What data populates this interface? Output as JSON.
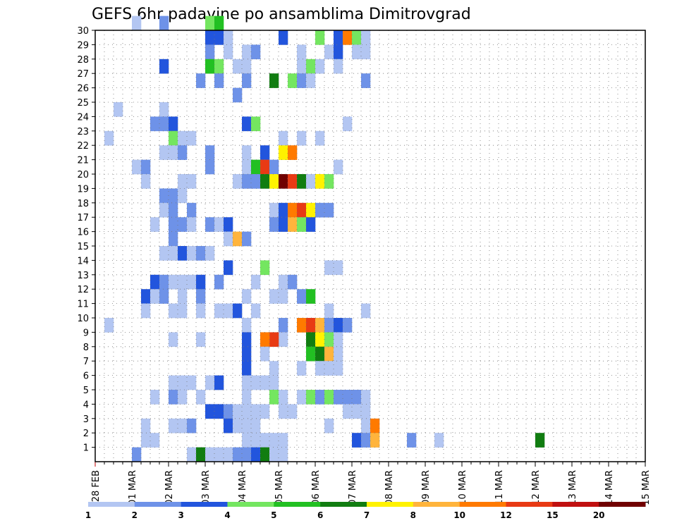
{
  "chart_data": {
    "type": "heatmap",
    "title": "GEFS 6hr padavine po ansamblima Dimitrovgrad",
    "xlabel": "",
    "ylabel": "",
    "x_tick_labels": [
      "28 FEB",
      "01 MAR",
      "02 MAR",
      "03 MAR",
      "04 MAR",
      "05 MAR",
      "06 MAR",
      "07 MAR",
      "08 MAR",
      "09 MAR",
      "10 MAR",
      "11 MAR",
      "12 MAR",
      "13 MAR",
      "14 MAR",
      "15 MAR"
    ],
    "xlim_days": [
      0,
      15
    ],
    "steps_per_day": 4,
    "y_tick_labels": [
      "1",
      "2",
      "3",
      "4",
      "5",
      "6",
      "7",
      "8",
      "9",
      "10",
      "11",
      "12",
      "13",
      "14",
      "15",
      "16",
      "17",
      "18",
      "19",
      "20",
      "21",
      "22",
      "23",
      "24",
      "25",
      "26",
      "27",
      "28",
      "29",
      "30"
    ],
    "ylim_members": [
      0,
      30
    ],
    "grid": true,
    "colorbar": {
      "placement": "bottom",
      "levels": [
        "1",
        "2",
        "3",
        "4",
        "5",
        "6",
        "7",
        "8",
        "10",
        "12",
        "15",
        "20"
      ],
      "colors": [
        "#b3c6f2",
        "#6e92e8",
        "#2255dd",
        "#74e660",
        "#22c022",
        "#117d11",
        "#fff200",
        "#ffb43c",
        "#ff7a00",
        "#e83a14",
        "#c01010",
        "#700000"
      ]
    },
    "precip_cells": [
      [
        30,
        4,
        0
      ],
      [
        30,
        7,
        1
      ],
      [
        30,
        12,
        3
      ],
      [
        30,
        13,
        4
      ],
      [
        29,
        12,
        2
      ],
      [
        29,
        13,
        2
      ],
      [
        29,
        14,
        0
      ],
      [
        29,
        20,
        2
      ],
      [
        29,
        24,
        3
      ],
      [
        29,
        26,
        2
      ],
      [
        29,
        27,
        8
      ],
      [
        29,
        28,
        3
      ],
      [
        29,
        29,
        0
      ],
      [
        28,
        14,
        0
      ],
      [
        28,
        16,
        0
      ],
      [
        28,
        17,
        1
      ],
      [
        28,
        12,
        1
      ],
      [
        28,
        22,
        0
      ],
      [
        28,
        25,
        0
      ],
      [
        28,
        26,
        2
      ],
      [
        28,
        28,
        0
      ],
      [
        28,
        29,
        0
      ],
      [
        27,
        7,
        2
      ],
      [
        27,
        12,
        4
      ],
      [
        27,
        13,
        3
      ],
      [
        27,
        15,
        0
      ],
      [
        27,
        16,
        0
      ],
      [
        27,
        22,
        0
      ],
      [
        27,
        23,
        3
      ],
      [
        27,
        24,
        0
      ],
      [
        27,
        26,
        0
      ],
      [
        26,
        11,
        1
      ],
      [
        26,
        13,
        1
      ],
      [
        26,
        16,
        1
      ],
      [
        26,
        19,
        5
      ],
      [
        26,
        21,
        3
      ],
      [
        26,
        22,
        1
      ],
      [
        26,
        23,
        0
      ],
      [
        26,
        29,
        1
      ],
      [
        25,
        15,
        1
      ],
      [
        24,
        2,
        0
      ],
      [
        24,
        7,
        0
      ],
      [
        23,
        6,
        1
      ],
      [
        23,
        7,
        1
      ],
      [
        23,
        8,
        2
      ],
      [
        23,
        16,
        2
      ],
      [
        23,
        17,
        3
      ],
      [
        23,
        27,
        0
      ],
      [
        22,
        1,
        0
      ],
      [
        22,
        8,
        3
      ],
      [
        22,
        9,
        0
      ],
      [
        22,
        10,
        0
      ],
      [
        22,
        20,
        0
      ],
      [
        22,
        22,
        0
      ],
      [
        22,
        24,
        0
      ],
      [
        21,
        7,
        0
      ],
      [
        21,
        8,
        0
      ],
      [
        21,
        9,
        1
      ],
      [
        21,
        12,
        1
      ],
      [
        21,
        16,
        0
      ],
      [
        21,
        18,
        2
      ],
      [
        21,
        20,
        6
      ],
      [
        21,
        21,
        8
      ],
      [
        20,
        4,
        0
      ],
      [
        20,
        5,
        1
      ],
      [
        20,
        12,
        1
      ],
      [
        20,
        16,
        0
      ],
      [
        20,
        17,
        4
      ],
      [
        20,
        18,
        9
      ],
      [
        20,
        19,
        1
      ],
      [
        20,
        26,
        0
      ],
      [
        19,
        5,
        0
      ],
      [
        19,
        9,
        0
      ],
      [
        19,
        10,
        0
      ],
      [
        19,
        15,
        0
      ],
      [
        19,
        16,
        1
      ],
      [
        19,
        17,
        1
      ],
      [
        19,
        18,
        5
      ],
      [
        19,
        19,
        6
      ],
      [
        19,
        20,
        11
      ],
      [
        19,
        21,
        9
      ],
      [
        19,
        22,
        5
      ],
      [
        19,
        23,
        0
      ],
      [
        19,
        24,
        6
      ],
      [
        19,
        25,
        3
      ],
      [
        18,
        7,
        1
      ],
      [
        18,
        8,
        1
      ],
      [
        18,
        9,
        0
      ],
      [
        17,
        7,
        0
      ],
      [
        17,
        8,
        1
      ],
      [
        17,
        10,
        1
      ],
      [
        17,
        19,
        0
      ],
      [
        17,
        20,
        2
      ],
      [
        17,
        21,
        8
      ],
      [
        17,
        22,
        9
      ],
      [
        17,
        23,
        6
      ],
      [
        17,
        24,
        1
      ],
      [
        17,
        25,
        1
      ],
      [
        16,
        6,
        0
      ],
      [
        16,
        8,
        1
      ],
      [
        16,
        9,
        1
      ],
      [
        16,
        10,
        0
      ],
      [
        16,
        12,
        1
      ],
      [
        16,
        13,
        0
      ],
      [
        16,
        14,
        2
      ],
      [
        16,
        19,
        1
      ],
      [
        16,
        20,
        2
      ],
      [
        16,
        21,
        7
      ],
      [
        16,
        22,
        3
      ],
      [
        16,
        23,
        2
      ],
      [
        15,
        14,
        0
      ],
      [
        15,
        15,
        7
      ],
      [
        15,
        16,
        1
      ],
      [
        15,
        8,
        1
      ],
      [
        14,
        7,
        0
      ],
      [
        14,
        8,
        0
      ],
      [
        14,
        9,
        2
      ],
      [
        14,
        10,
        0
      ],
      [
        14,
        11,
        1
      ],
      [
        14,
        12,
        0
      ],
      [
        13,
        14,
        2
      ],
      [
        13,
        18,
        3
      ],
      [
        13,
        25,
        0
      ],
      [
        13,
        26,
        0
      ],
      [
        12,
        6,
        2
      ],
      [
        12,
        7,
        1
      ],
      [
        12,
        8,
        0
      ],
      [
        12,
        9,
        0
      ],
      [
        12,
        10,
        0
      ],
      [
        12,
        11,
        2
      ],
      [
        12,
        13,
        1
      ],
      [
        12,
        17,
        0
      ],
      [
        12,
        20,
        0
      ],
      [
        12,
        21,
        1
      ],
      [
        11,
        5,
        2
      ],
      [
        11,
        6,
        0
      ],
      [
        11,
        7,
        1
      ],
      [
        11,
        9,
        0
      ],
      [
        11,
        11,
        1
      ],
      [
        11,
        16,
        0
      ],
      [
        11,
        19,
        0
      ],
      [
        11,
        20,
        0
      ],
      [
        11,
        22,
        1
      ],
      [
        11,
        23,
        4
      ],
      [
        10,
        5,
        0
      ],
      [
        10,
        8,
        0
      ],
      [
        10,
        9,
        0
      ],
      [
        10,
        11,
        0
      ],
      [
        10,
        13,
        0
      ],
      [
        10,
        14,
        0
      ],
      [
        10,
        15,
        2
      ],
      [
        10,
        17,
        0
      ],
      [
        10,
        25,
        0
      ],
      [
        10,
        29,
        0
      ],
      [
        9,
        1,
        0
      ],
      [
        9,
        16,
        0
      ],
      [
        9,
        20,
        1
      ],
      [
        9,
        22,
        8
      ],
      [
        9,
        23,
        9
      ],
      [
        9,
        24,
        7
      ],
      [
        9,
        25,
        1
      ],
      [
        9,
        26,
        2
      ],
      [
        9,
        27,
        1
      ],
      [
        8,
        8,
        0
      ],
      [
        8,
        16,
        2
      ],
      [
        8,
        20,
        0
      ],
      [
        8,
        11,
        0
      ],
      [
        8,
        19,
        9
      ],
      [
        8,
        18,
        8
      ],
      [
        8,
        23,
        5
      ],
      [
        8,
        24,
        6
      ],
      [
        8,
        25,
        3
      ],
      [
        8,
        26,
        0
      ],
      [
        7,
        16,
        2
      ],
      [
        7,
        18,
        0
      ],
      [
        7,
        23,
        4
      ],
      [
        7,
        24,
        5
      ],
      [
        7,
        25,
        7
      ],
      [
        7,
        26,
        0
      ],
      [
        6,
        16,
        2
      ],
      [
        6,
        19,
        0
      ],
      [
        6,
        22,
        0
      ],
      [
        6,
        24,
        0
      ],
      [
        6,
        25,
        0
      ],
      [
        6,
        26,
        0
      ],
      [
        5,
        8,
        0
      ],
      [
        5,
        9,
        0
      ],
      [
        5,
        10,
        0
      ],
      [
        5,
        12,
        0
      ],
      [
        5,
        13,
        2
      ],
      [
        5,
        16,
        0
      ],
      [
        5,
        17,
        0
      ],
      [
        5,
        18,
        0
      ],
      [
        5,
        19,
        0
      ],
      [
        4,
        6,
        0
      ],
      [
        4,
        8,
        1
      ],
      [
        4,
        9,
        0
      ],
      [
        4,
        11,
        0
      ],
      [
        4,
        16,
        0
      ],
      [
        4,
        19,
        3
      ],
      [
        4,
        20,
        0
      ],
      [
        4,
        22,
        0
      ],
      [
        4,
        23,
        3
      ],
      [
        4,
        24,
        1
      ],
      [
        4,
        25,
        3
      ],
      [
        4,
        26,
        1
      ],
      [
        4,
        27,
        1
      ],
      [
        4,
        28,
        1
      ],
      [
        4,
        29,
        0
      ],
      [
        3,
        12,
        2
      ],
      [
        3,
        13,
        2
      ],
      [
        3,
        14,
        1
      ],
      [
        3,
        15,
        0
      ],
      [
        3,
        16,
        0
      ],
      [
        3,
        17,
        0
      ],
      [
        3,
        18,
        0
      ],
      [
        3,
        20,
        0
      ],
      [
        3,
        21,
        0
      ],
      [
        3,
        27,
        0
      ],
      [
        3,
        28,
        0
      ],
      [
        3,
        29,
        0
      ],
      [
        2,
        5,
        0
      ],
      [
        2,
        8,
        0
      ],
      [
        2,
        9,
        0
      ],
      [
        2,
        10,
        1
      ],
      [
        2,
        14,
        2
      ],
      [
        2,
        15,
        0
      ],
      [
        2,
        16,
        0
      ],
      [
        2,
        17,
        0
      ],
      [
        2,
        25,
        0
      ],
      [
        2,
        29,
        0
      ],
      [
        1,
        5,
        0
      ],
      [
        1,
        6,
        0
      ],
      [
        1,
        16,
        0
      ],
      [
        1,
        17,
        0
      ],
      [
        1,
        18,
        0
      ],
      [
        1,
        19,
        0
      ],
      [
        1,
        20,
        0
      ],
      [
        1,
        28,
        2
      ],
      [
        1,
        29,
        1
      ],
      [
        0,
        4,
        1
      ],
      [
        0,
        10,
        0
      ],
      [
        0,
        11,
        5
      ],
      [
        0,
        12,
        0
      ],
      [
        0,
        13,
        0
      ],
      [
        0,
        14,
        0
      ],
      [
        0,
        15,
        1
      ],
      [
        0,
        16,
        1
      ],
      [
        0,
        17,
        2
      ],
      [
        0,
        18,
        5
      ],
      [
        0,
        19,
        0
      ],
      [
        0,
        20,
        0
      ],
      [
        2,
        30,
        8
      ],
      [
        1,
        30,
        7
      ],
      [
        1,
        34,
        1
      ],
      [
        1,
        37,
        0
      ],
      [
        1,
        48,
        5
      ]
    ]
  }
}
